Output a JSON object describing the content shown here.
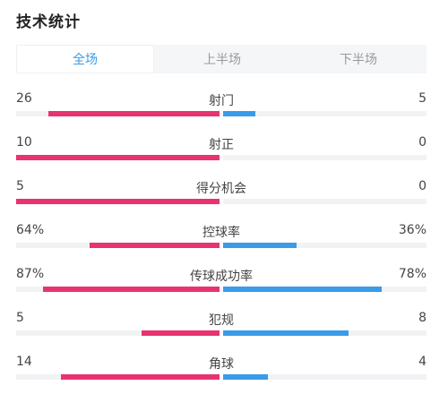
{
  "title": "技术统计",
  "tabs": [
    {
      "label": "全场",
      "active": true
    },
    {
      "label": "上半场",
      "active": false
    },
    {
      "label": "下半场",
      "active": false
    }
  ],
  "colors": {
    "home": "#e8336f",
    "away": "#3a9be8",
    "track": "#f1f2f4",
    "active_tab": "#3a9be8"
  },
  "stats": [
    {
      "name": "射门",
      "left": "26",
      "right": "5",
      "left_share": 0.84,
      "right_share": 0.16
    },
    {
      "name": "射正",
      "left": "10",
      "right": "0",
      "left_share": 1.0,
      "right_share": 0.0
    },
    {
      "name": "得分机会",
      "left": "5",
      "right": "0",
      "left_share": 1.0,
      "right_share": 0.0
    },
    {
      "name": "控球率",
      "left": "64%",
      "right": "36%",
      "left_share": 0.64,
      "right_share": 0.36
    },
    {
      "name": "传球成功率",
      "left": "87%",
      "right": "78%",
      "left_share": 0.87,
      "right_share": 0.78
    },
    {
      "name": "犯规",
      "left": "5",
      "right": "8",
      "left_share": 0.385,
      "right_share": 0.615
    },
    {
      "name": "角球",
      "left": "14",
      "right": "4",
      "left_share": 0.78,
      "right_share": 0.22
    }
  ]
}
